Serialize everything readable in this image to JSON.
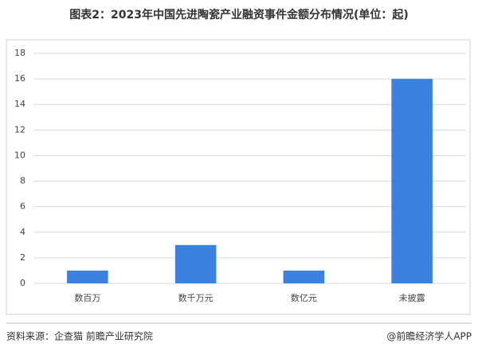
{
  "chart_data": {
    "type": "bar",
    "title": "图表2：2023年中国先进陶瓷产业融资事件金额分布情况(单位：起)",
    "categories": [
      "数百万",
      "数千万元",
      "数亿元",
      "未披露"
    ],
    "values": [
      1,
      3,
      1,
      16
    ],
    "color": "#3b82e0",
    "ylim": [
      0,
      18
    ],
    "yticks": [
      0,
      2,
      4,
      6,
      8,
      10,
      12,
      14,
      16,
      18
    ],
    "grid": true
  },
  "footer": {
    "source": "资料来源：企查猫 前瞻产业研究院",
    "credit": "@前瞻经济学人APP"
  }
}
